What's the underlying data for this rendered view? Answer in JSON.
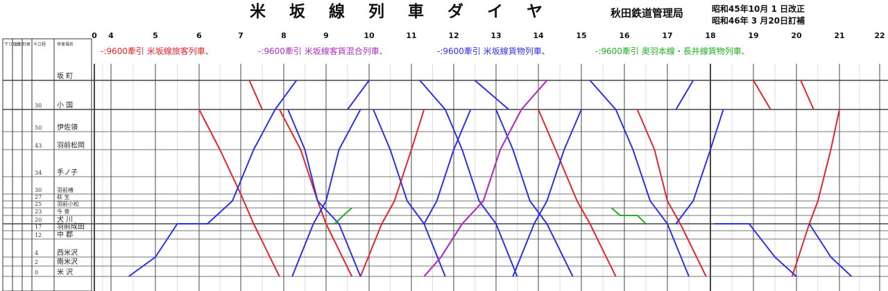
{
  "title_chars": [
    "米",
    "坂",
    "線",
    "列",
    "車",
    "ダ",
    "イ",
    "ヤ"
  ],
  "issuer": "秋田鉄道管理局",
  "revision": [
    "昭和45年10月 1 日改正",
    "昭和46年 3 月20日訂補"
  ],
  "hours": [
    "0",
    "4",
    "5",
    "6",
    "7",
    "8",
    "9",
    "10",
    "11",
    "12",
    "13",
    "14",
    "15",
    "16",
    "17",
    "18",
    "19",
    "20",
    "21",
    "22"
  ],
  "legend": [
    {
      "text": "-:9600牽引 米坂線旅客列車、",
      "color": "#e8222a"
    },
    {
      "text": "-:9600牽引 米坂線客貨混合列車、",
      "color": "#b030c0"
    },
    {
      "text": "-:9600牽引 米坂線貨物列車、",
      "color": "#2a30e8"
    },
    {
      "text": "-:9600牽引 奥羽本線・長井線貨物列車、",
      "color": "#20b020"
    }
  ],
  "header_columns": [
    "下り列車",
    "上り列車",
    "キロ程",
    "停車場名"
  ],
  "stations": [
    {
      "name": "坂 町",
      "km": ""
    },
    {
      "name": "小 国",
      "km": "30"
    },
    {
      "name": "伊佐領",
      "km": "50"
    },
    {
      "name": "羽前松岡",
      "km": "43"
    },
    {
      "name": "手ノ子",
      "km": "34"
    },
    {
      "name": "羽前椿",
      "km": "30"
    },
    {
      "name": "萩 生",
      "km": "27"
    },
    {
      "name": "羽前小松",
      "km": "25"
    },
    {
      "name": "今 泉",
      "km": "23"
    },
    {
      "name": "犬 川",
      "km": "20"
    },
    {
      "name": "羽前成田",
      "km": "17"
    },
    {
      "name": "中 郡",
      "km": "12"
    },
    {
      "name": "西米沢",
      "km": "4"
    },
    {
      "name": "南米沢",
      "km": "2"
    },
    {
      "name": "米 沢",
      "km": "0"
    }
  ],
  "colors": {
    "red": "#e8222a",
    "blue": "#2a30e8",
    "purple": "#b030c0",
    "green": "#20b020",
    "grid": "#444444"
  }
}
